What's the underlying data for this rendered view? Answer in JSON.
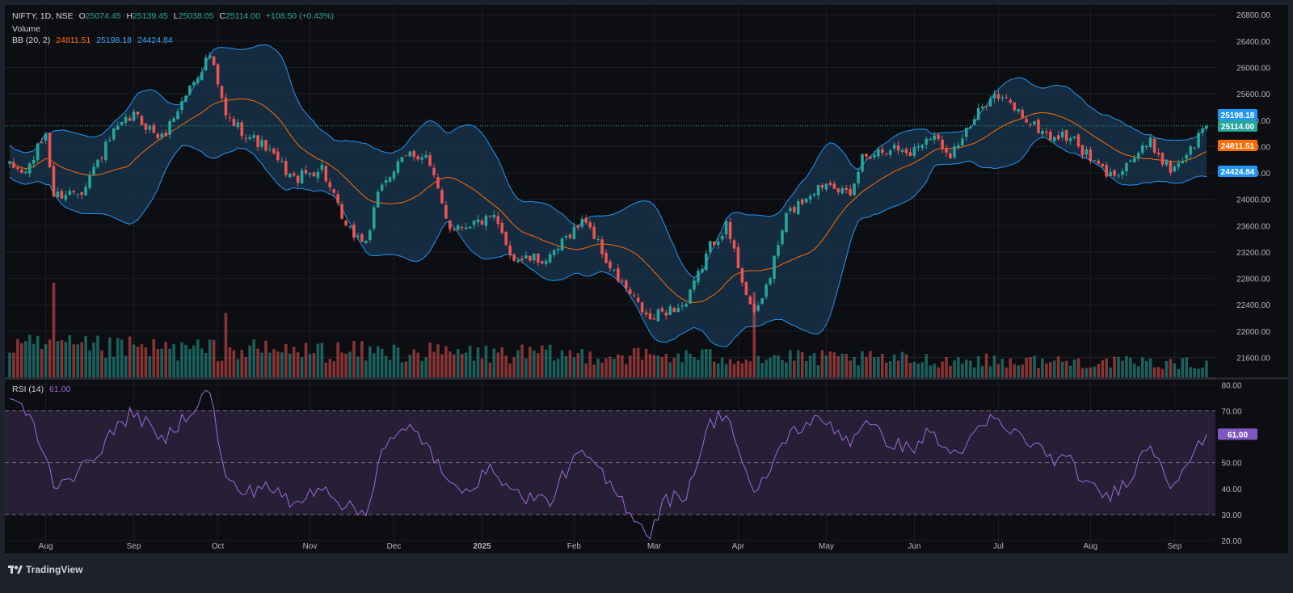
{
  "header": {
    "symbol": "NIFTY, 1D, NSE",
    "open_label": "O",
    "open": "25074.45",
    "high_label": "H",
    "high": "25139.45",
    "low_label": "L",
    "low": "25038.05",
    "close_label": "C",
    "close": "25114.00",
    "change": "+108.50 (+0.43%)",
    "volume_label": "Volume",
    "bb_label": "BB (20, 2)",
    "bb_basis": "24811.51",
    "bb_upper": "25198.18",
    "bb_lower": "24424.84",
    "rsi_label": "RSI (14)",
    "rsi_value": "61.00"
  },
  "price_badges": {
    "upper": "25198.18",
    "close": "25114.00",
    "basis": "24811.51",
    "lower": "24424.84",
    "rsi": "61.00"
  },
  "colors": {
    "background": "#161a25",
    "panel": "#1e222d",
    "up": "#26a69a",
    "down": "#ef5350",
    "band_line": "#2196f3",
    "band_fill": "#173049",
    "basis_line": "#ff6d00",
    "rsi_line": "#9c6ad8",
    "rsi_fill": "#271f36",
    "badge_upper": "#2196f3",
    "badge_close": "#26a69a",
    "badge_basis": "#ff6d00",
    "badge_lower": "#2196f3",
    "badge_rsi": "#7e57c2"
  },
  "chart_data": [
    {
      "type": "candlestick",
      "title": "NIFTY, 1D, NSE",
      "price_ticks": [
        "26800.00",
        "26400.00",
        "26000.00",
        "25600.00",
        "25200.00",
        "24800.00",
        "24400.00",
        "24000.00",
        "23600.00",
        "23200.00",
        "22800.00",
        "22400.00",
        "22000.00",
        "21600.00"
      ],
      "ylim": [
        21300,
        26950
      ],
      "x_ticks": [
        "Aug",
        "Sep",
        "Oct",
        "Nov",
        "Dec",
        "2025",
        "Feb",
        "Mar",
        "Apr",
        "May",
        "Jun",
        "Jul",
        "Aug",
        "Sep"
      ],
      "anchors": [
        {
          "date": "2024-07-19",
          "close": 24500
        },
        {
          "date": "2024-07-25",
          "close": 24400
        },
        {
          "date": "2024-08-01",
          "close": 25000
        },
        {
          "date": "2024-08-05",
          "close": 24050
        },
        {
          "date": "2024-08-14",
          "close": 24150
        },
        {
          "date": "2024-08-26",
          "close": 25000
        },
        {
          "date": "2024-09-02",
          "close": 25280
        },
        {
          "date": "2024-09-11",
          "close": 24920
        },
        {
          "date": "2024-09-20",
          "close": 25700
        },
        {
          "date": "2024-09-27",
          "close": 26200
        },
        {
          "date": "2024-10-03",
          "close": 25250
        },
        {
          "date": "2024-10-10",
          "close": 25000
        },
        {
          "date": "2024-10-17",
          "close": 24780
        },
        {
          "date": "2024-10-28",
          "close": 24300
        },
        {
          "date": "2024-11-06",
          "close": 24480
        },
        {
          "date": "2024-11-14",
          "close": 23550
        },
        {
          "date": "2024-11-21",
          "close": 23350
        },
        {
          "date": "2024-11-27",
          "close": 24250
        },
        {
          "date": "2024-12-06",
          "close": 24700
        },
        {
          "date": "2024-12-12",
          "close": 24650
        },
        {
          "date": "2024-12-20",
          "close": 23580
        },
        {
          "date": "2024-12-30",
          "close": 23650
        },
        {
          "date": "2025-01-06",
          "close": 23700
        },
        {
          "date": "2025-01-13",
          "close": 23100
        },
        {
          "date": "2025-01-24",
          "close": 23080
        },
        {
          "date": "2025-01-31",
          "close": 23500
        },
        {
          "date": "2025-02-06",
          "close": 23700
        },
        {
          "date": "2025-02-14",
          "close": 22950
        },
        {
          "date": "2025-02-28",
          "close": 22150
        },
        {
          "date": "2025-03-05",
          "close": 22300
        },
        {
          "date": "2025-03-13",
          "close": 22400
        },
        {
          "date": "2025-03-21",
          "close": 23300
        },
        {
          "date": "2025-03-27",
          "close": 23600
        },
        {
          "date": "2025-04-07",
          "close": 22200
        },
        {
          "date": "2025-04-11",
          "close": 22850
        },
        {
          "date": "2025-04-17",
          "close": 23750
        },
        {
          "date": "2025-04-25",
          "close": 24100
        },
        {
          "date": "2025-05-02",
          "close": 24300
        },
        {
          "date": "2025-05-09",
          "close": 24000
        },
        {
          "date": "2025-05-14",
          "close": 24650
        },
        {
          "date": "2025-05-23",
          "close": 24800
        },
        {
          "date": "2025-05-30",
          "close": 24700
        },
        {
          "date": "2025-06-06",
          "close": 25000
        },
        {
          "date": "2025-06-13",
          "close": 24700
        },
        {
          "date": "2025-06-20",
          "close": 25100
        },
        {
          "date": "2025-06-27",
          "close": 25600
        },
        {
          "date": "2025-07-04",
          "close": 25450
        },
        {
          "date": "2025-07-11",
          "close": 25150
        },
        {
          "date": "2025-07-18",
          "close": 24950
        },
        {
          "date": "2025-07-25",
          "close": 24950
        },
        {
          "date": "2025-08-01",
          "close": 24600
        },
        {
          "date": "2025-08-08",
          "close": 24350
        },
        {
          "date": "2025-08-15",
          "close": 24600
        },
        {
          "date": "2025-08-22",
          "close": 24850
        },
        {
          "date": "2025-08-29",
          "close": 24450
        },
        {
          "date": "2025-09-05",
          "close": 24750
        },
        {
          "date": "2025-09-10",
          "close": 25050
        },
        {
          "date": "2025-09-11",
          "close": 25114
        }
      ],
      "last_bar": {
        "open": 25074.45,
        "high": 25139.45,
        "low": 25038.05,
        "close": 25114.0
      }
    },
    {
      "type": "line",
      "title": "RSI (14)",
      "ylim": [
        15,
        82
      ],
      "y_ticks": [
        "80.00",
        "70.00",
        "60.00",
        "50.00",
        "40.00",
        "30.00",
        "20.00"
      ],
      "levels": [
        70,
        50,
        30
      ],
      "anchors": [
        {
          "date": "2024-07-19",
          "value": 76
        },
        {
          "date": "2024-07-29",
          "value": 65
        },
        {
          "date": "2024-08-05",
          "value": 42
        },
        {
          "date": "2024-08-14",
          "value": 47
        },
        {
          "date": "2024-08-26",
          "value": 62
        },
        {
          "date": "2024-09-02",
          "value": 70
        },
        {
          "date": "2024-09-11",
          "value": 58
        },
        {
          "date": "2024-09-20",
          "value": 70
        },
        {
          "date": "2024-09-27",
          "value": 78
        },
        {
          "date": "2024-10-03",
          "value": 43
        },
        {
          "date": "2024-10-10",
          "value": 38
        },
        {
          "date": "2024-10-17",
          "value": 42
        },
        {
          "date": "2024-10-28",
          "value": 33
        },
        {
          "date": "2024-11-06",
          "value": 42
        },
        {
          "date": "2024-11-14",
          "value": 33
        },
        {
          "date": "2024-11-21",
          "value": 30
        },
        {
          "date": "2024-11-27",
          "value": 56
        },
        {
          "date": "2024-12-06",
          "value": 63
        },
        {
          "date": "2024-12-12",
          "value": 58
        },
        {
          "date": "2024-12-20",
          "value": 40
        },
        {
          "date": "2024-12-30",
          "value": 42
        },
        {
          "date": "2025-01-06",
          "value": 48
        },
        {
          "date": "2025-01-13",
          "value": 38
        },
        {
          "date": "2025-01-24",
          "value": 35
        },
        {
          "date": "2025-01-31",
          "value": 50
        },
        {
          "date": "2025-02-06",
          "value": 53
        },
        {
          "date": "2025-02-14",
          "value": 41
        },
        {
          "date": "2025-02-28",
          "value": 22
        },
        {
          "date": "2025-03-05",
          "value": 35
        },
        {
          "date": "2025-03-13",
          "value": 38
        },
        {
          "date": "2025-03-21",
          "value": 65
        },
        {
          "date": "2025-03-27",
          "value": 70
        },
        {
          "date": "2025-04-07",
          "value": 36
        },
        {
          "date": "2025-04-11",
          "value": 48
        },
        {
          "date": "2025-04-17",
          "value": 60
        },
        {
          "date": "2025-04-25",
          "value": 66
        },
        {
          "date": "2025-05-02",
          "value": 65
        },
        {
          "date": "2025-05-09",
          "value": 58
        },
        {
          "date": "2025-05-14",
          "value": 66
        },
        {
          "date": "2025-05-23",
          "value": 58
        },
        {
          "date": "2025-05-30",
          "value": 55
        },
        {
          "date": "2025-06-06",
          "value": 62
        },
        {
          "date": "2025-06-13",
          "value": 53
        },
        {
          "date": "2025-06-20",
          "value": 58
        },
        {
          "date": "2025-06-27",
          "value": 67
        },
        {
          "date": "2025-07-04",
          "value": 62
        },
        {
          "date": "2025-07-11",
          "value": 58
        },
        {
          "date": "2025-07-18",
          "value": 52
        },
        {
          "date": "2025-07-25",
          "value": 50
        },
        {
          "date": "2025-08-01",
          "value": 40
        },
        {
          "date": "2025-08-08",
          "value": 37
        },
        {
          "date": "2025-08-15",
          "value": 45
        },
        {
          "date": "2025-08-22",
          "value": 58
        },
        {
          "date": "2025-08-29",
          "value": 42
        },
        {
          "date": "2025-09-05",
          "value": 52
        },
        {
          "date": "2025-09-10",
          "value": 58
        },
        {
          "date": "2025-09-11",
          "value": 61
        }
      ]
    },
    {
      "type": "bar",
      "title": "Volume",
      "notable_bars": [
        {
          "date": "2024-08-05",
          "relative": 1.0
        },
        {
          "date": "2025-04-07",
          "relative": 0.9
        },
        {
          "date": "2024-10-03",
          "relative": 0.68
        }
      ]
    }
  ],
  "footer": {
    "brand": "TradingView"
  }
}
